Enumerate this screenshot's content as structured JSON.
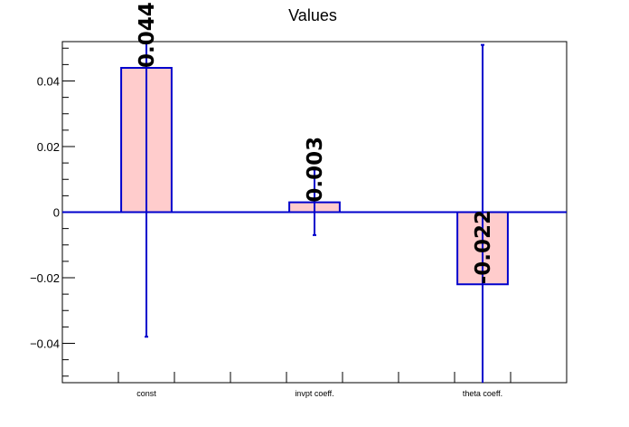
{
  "chart_data": {
    "type": "bar",
    "title": "Values",
    "categories": [
      "const",
      "invpt coeff.",
      "theta coeff."
    ],
    "values": [
      0.044,
      0.003,
      -0.022
    ],
    "errors": [
      0.082,
      0.01,
      0.073
    ],
    "value_labels": [
      "0.044",
      "0.003",
      "-0.022"
    ],
    "xlabel": "",
    "ylabel": "",
    "ylim": [
      -0.052,
      0.052
    ],
    "yticks": [
      -0.04,
      -0.02,
      0,
      0.02,
      0.04
    ],
    "ytick_labels": [
      "−0.04",
      "−0.02",
      "0",
      "0.02",
      "0.04"
    ],
    "grid": false,
    "colors": {
      "bar_fill": "#ffcccc",
      "bar_edge": "#0000cc",
      "error_bar": "#0000cc",
      "zero_line": "#0000cc",
      "axis": "#000000"
    }
  }
}
